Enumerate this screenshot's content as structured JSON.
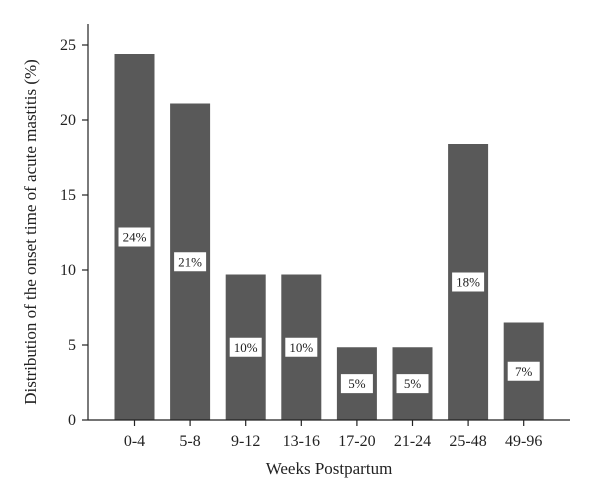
{
  "chart_data": {
    "type": "bar",
    "title": "",
    "xlabel": "Weeks Postpartum",
    "ylabel": "Distribution of the onset time of acute mastitis (%)",
    "categories": [
      "0-4",
      "5-8",
      "9-12",
      "13-16",
      "17-20",
      "21-24",
      "25-48",
      "49-96"
    ],
    "values": [
      24.4,
      21.1,
      9.7,
      9.7,
      4.85,
      4.85,
      18.4,
      6.5
    ],
    "data_labels": [
      "24%",
      "21%",
      "10%",
      "10%",
      "5%",
      "5%",
      "18%",
      "7%"
    ],
    "yticks": [
      0,
      5,
      10,
      15,
      20,
      25
    ],
    "ylim": [
      0,
      26
    ],
    "bar_color": "#595959",
    "grid": false,
    "legend": "none"
  }
}
